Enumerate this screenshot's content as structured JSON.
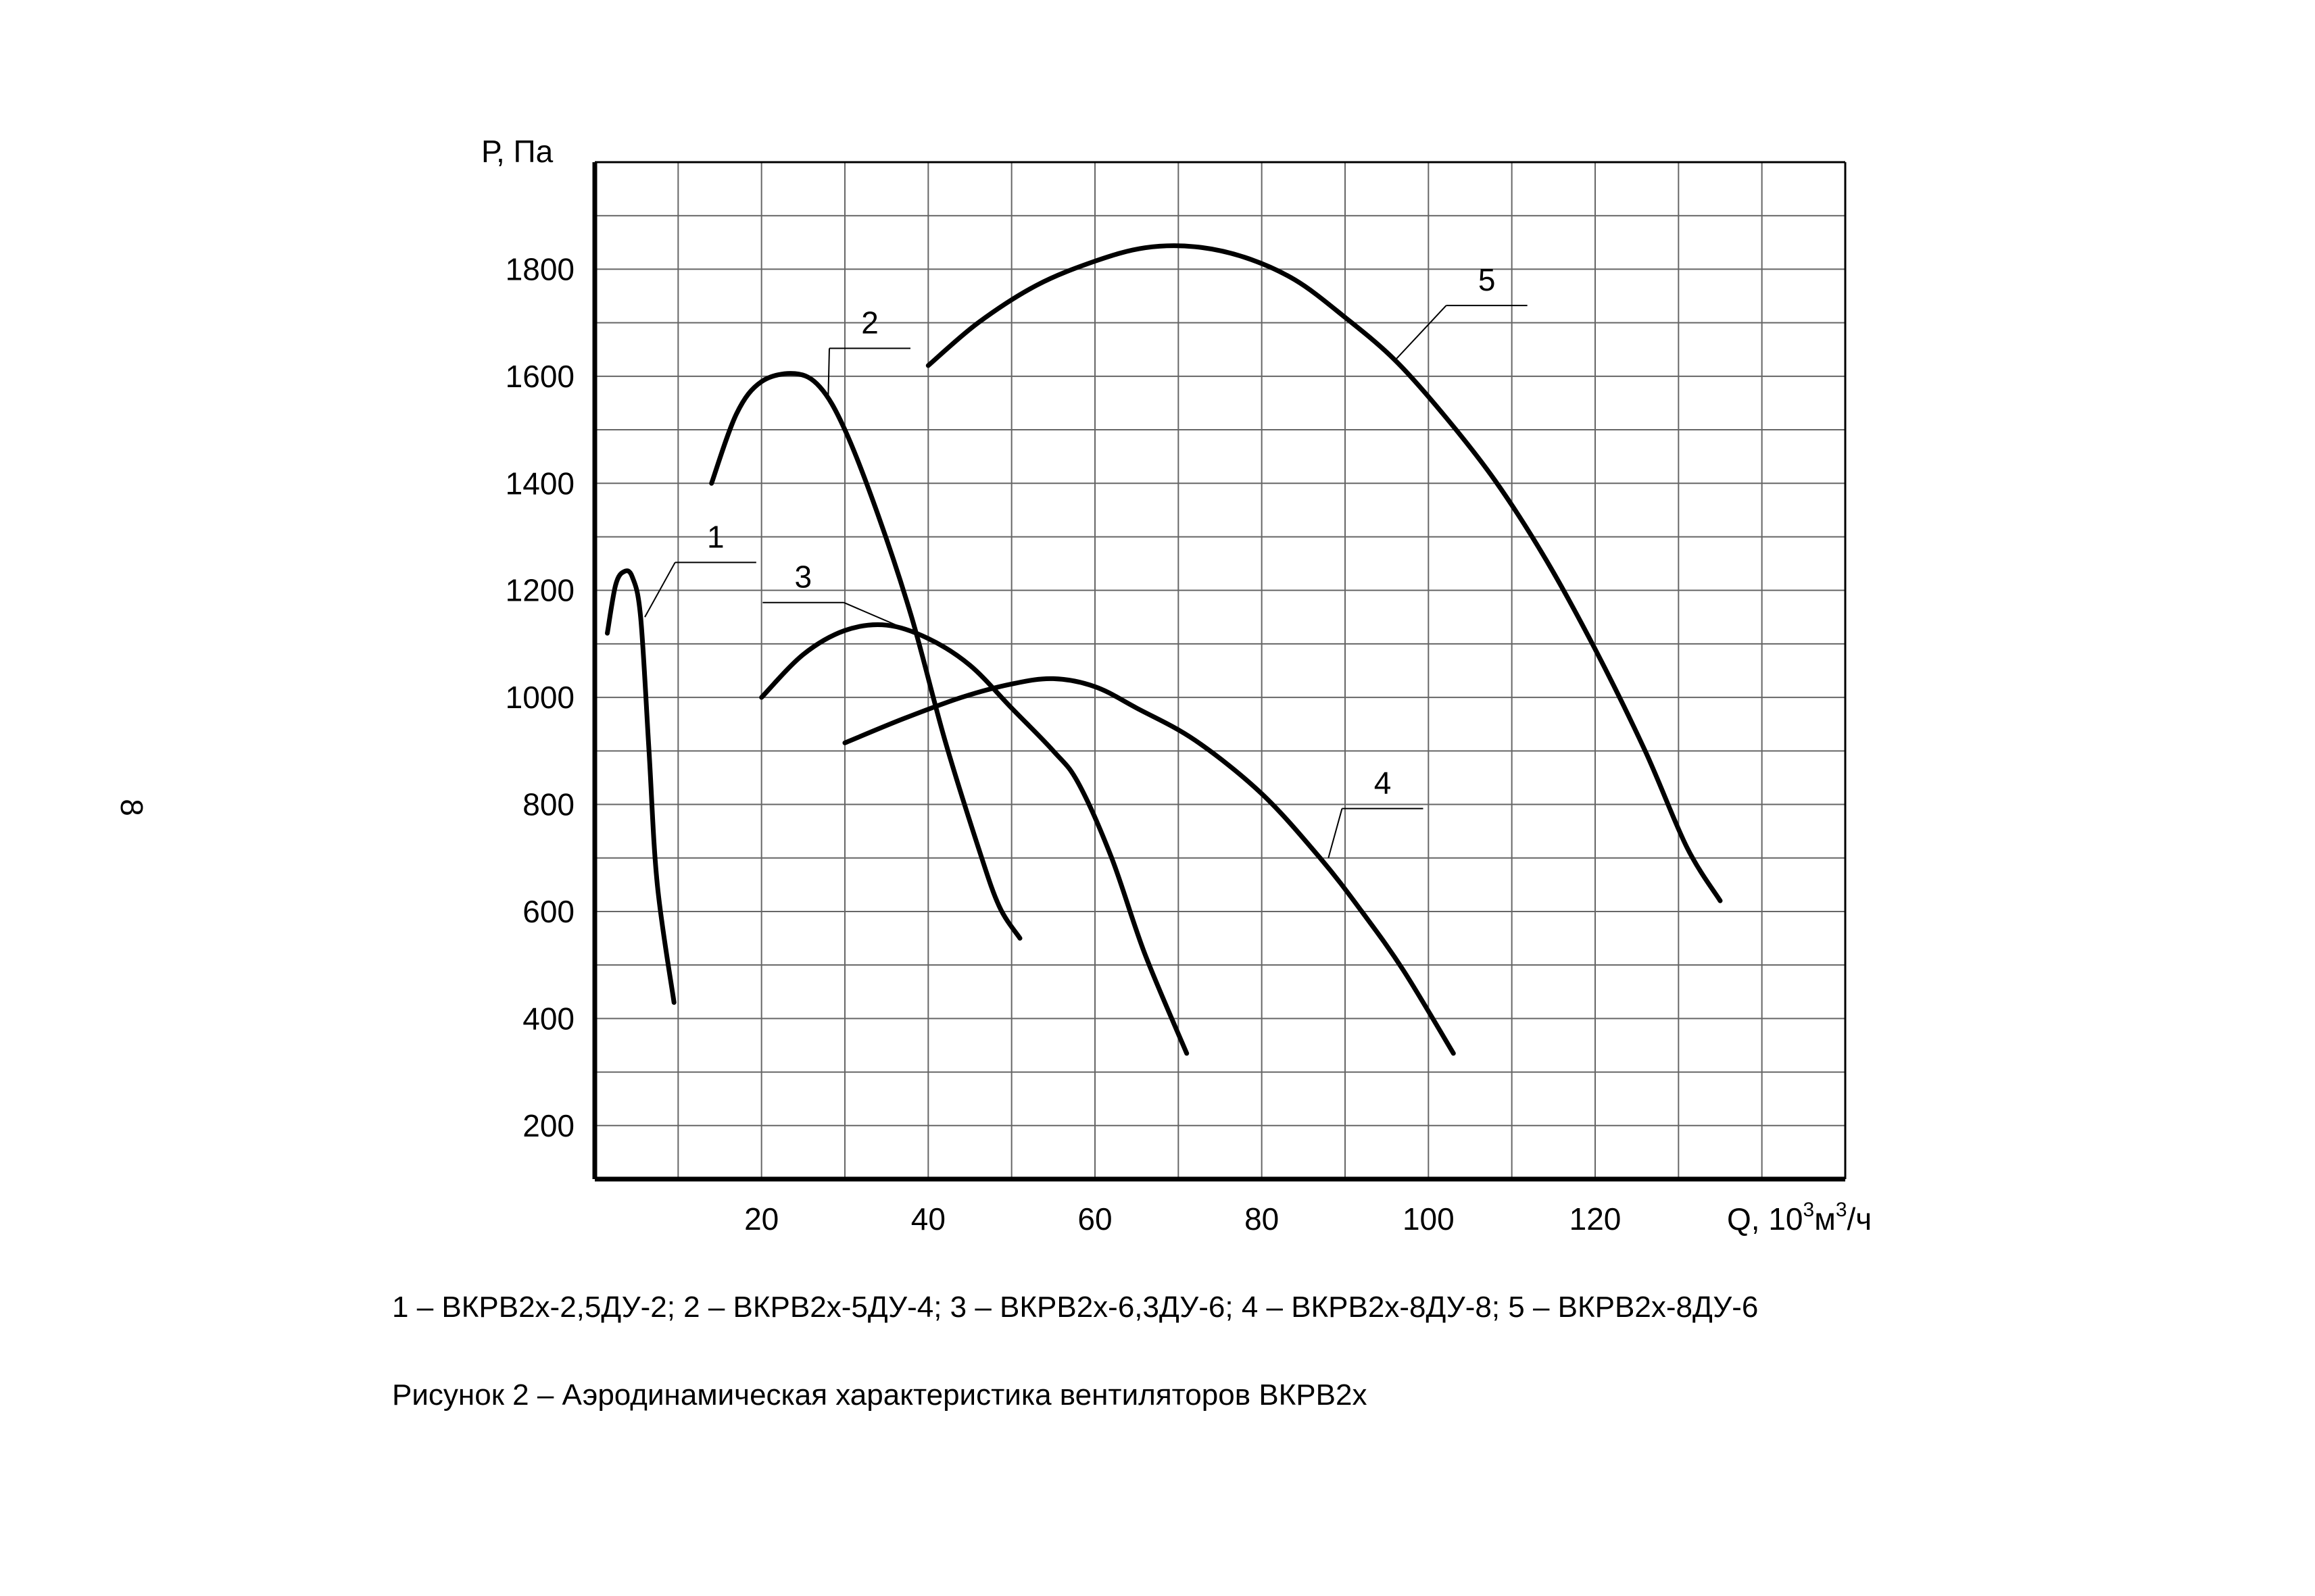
{
  "page_number": "8",
  "legend_text": "1 – ВКРВ2х-2,5ДУ-2; 2 – ВКРВ2х-5ДУ-4; 3 – ВКРВ2х-6,3ДУ-6; 4 – ВКРВ2х-8ДУ-8; 5 – ВКРВ2х-8ДУ-6",
  "caption": "Рисунок 2 – Аэродинамическая характеристика вентиляторов ВКРВ2х",
  "chart_data": {
    "type": "line",
    "ylabel": "Р, Па",
    "xlabel": {
      "base": "Q, 10",
      "sup1": "3",
      "mid": "м",
      "sup2": "3",
      "tail": "/ч"
    },
    "xlim": [
      0,
      150
    ],
    "ylim": [
      100,
      2000
    ],
    "x_ticks": [
      20,
      40,
      60,
      80,
      100,
      120
    ],
    "y_ticks": [
      200,
      400,
      600,
      800,
      1000,
      1200,
      1400,
      1600,
      1800
    ],
    "grid": true,
    "series": [
      {
        "name": "1",
        "points": [
          [
            1.5,
            1120
          ],
          [
            2.5,
            1210
          ],
          [
            3.5,
            1235
          ],
          [
            4.5,
            1225
          ],
          [
            5.5,
            1150
          ],
          [
            6.5,
            900
          ],
          [
            7.5,
            650
          ],
          [
            9.5,
            430
          ]
        ]
      },
      {
        "name": "2",
        "points": [
          [
            14,
            1400
          ],
          [
            17,
            1530
          ],
          [
            20,
            1590
          ],
          [
            24,
            1605
          ],
          [
            27,
            1580
          ],
          [
            30,
            1500
          ],
          [
            34,
            1340
          ],
          [
            38,
            1150
          ],
          [
            42,
            920
          ],
          [
            46,
            720
          ],
          [
            48.5,
            610
          ],
          [
            51,
            550
          ]
        ]
      },
      {
        "name": "3",
        "points": [
          [
            20,
            1000
          ],
          [
            25,
            1080
          ],
          [
            30,
            1125
          ],
          [
            35,
            1135
          ],
          [
            40,
            1110
          ],
          [
            45,
            1060
          ],
          [
            50,
            980
          ],
          [
            55,
            900
          ],
          [
            58,
            840
          ],
          [
            62,
            700
          ],
          [
            66,
            520
          ],
          [
            71,
            335
          ]
        ]
      },
      {
        "name": "4",
        "points": [
          [
            30,
            915
          ],
          [
            37,
            960
          ],
          [
            44,
            1000
          ],
          [
            50,
            1025
          ],
          [
            55,
            1035
          ],
          [
            60,
            1020
          ],
          [
            65,
            980
          ],
          [
            72,
            920
          ],
          [
            80,
            820
          ],
          [
            87,
            700
          ],
          [
            92,
            600
          ],
          [
            97,
            490
          ],
          [
            103,
            335
          ]
        ]
      },
      {
        "name": "5",
        "points": [
          [
            40,
            1620
          ],
          [
            46,
            1700
          ],
          [
            53,
            1770
          ],
          [
            60,
            1815
          ],
          [
            66,
            1840
          ],
          [
            72,
            1842
          ],
          [
            78,
            1822
          ],
          [
            84,
            1780
          ],
          [
            90,
            1710
          ],
          [
            96,
            1630
          ],
          [
            102,
            1525
          ],
          [
            108,
            1405
          ],
          [
            114,
            1260
          ],
          [
            120,
            1090
          ],
          [
            126,
            900
          ],
          [
            131,
            720
          ],
          [
            135,
            620
          ]
        ]
      }
    ],
    "annotations": [
      {
        "text": "1",
        "x": 14.5,
        "y": 1280,
        "target": [
          6,
          1150
        ]
      },
      {
        "text": "2",
        "x": 33,
        "y": 1680,
        "target": [
          28,
          1560
        ]
      },
      {
        "text": "3",
        "x": 25,
        "y": 1205,
        "target": [
          39,
          1116
        ]
      },
      {
        "text": "4",
        "x": 94.5,
        "y": 820,
        "target": [
          88,
          700
        ]
      },
      {
        "text": "5",
        "x": 107,
        "y": 1760,
        "target": [
          96,
          1630
        ]
      }
    ]
  }
}
